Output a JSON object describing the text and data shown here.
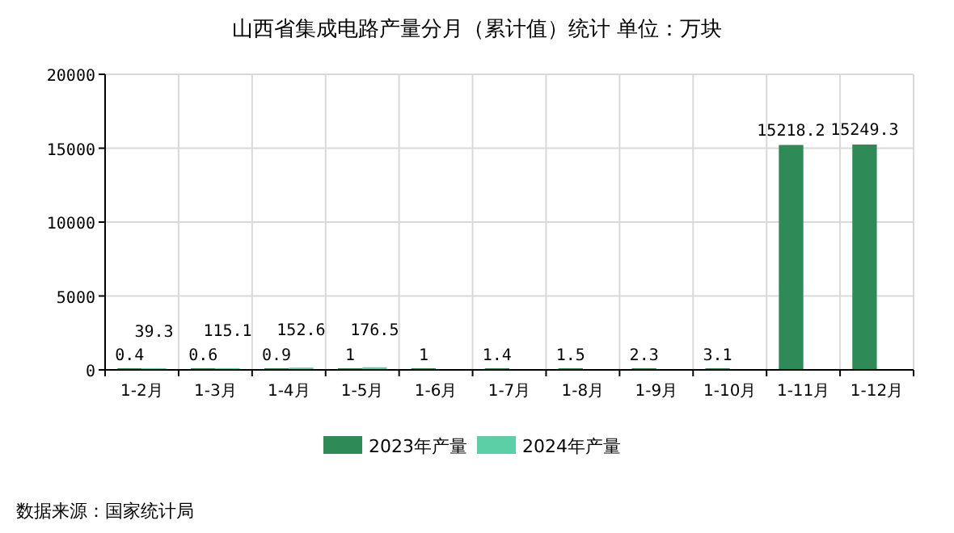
{
  "chart_data": {
    "type": "bar",
    "title": "山西省集成电路产量分月（累计值）统计 单位：万块",
    "categories": [
      "1-2月",
      "1-3月",
      "1-4月",
      "1-5月",
      "1-6月",
      "1-7月",
      "1-8月",
      "1-9月",
      "1-10月",
      "1-11月",
      "1-12月"
    ],
    "series": [
      {
        "name": "2023年产量",
        "color": "#2e8b57",
        "values": [
          0.4,
          0.6,
          0.9,
          1,
          1,
          1.4,
          1.5,
          2.3,
          3.1,
          15218.2,
          15249.3
        ]
      },
      {
        "name": "2024年产量",
        "color": "#5ccfa6",
        "values": [
          39.3,
          115.1,
          152.6,
          176.5,
          null,
          null,
          null,
          null,
          null,
          null,
          null
        ]
      }
    ],
    "ylim": [
      0,
      20000
    ],
    "yticks": [
      0,
      5000,
      10000,
      15000,
      20000
    ],
    "grid": true,
    "legend": "bottom",
    "data_labels": true,
    "annotations": [
      "数据来源：国家统计局"
    ]
  }
}
